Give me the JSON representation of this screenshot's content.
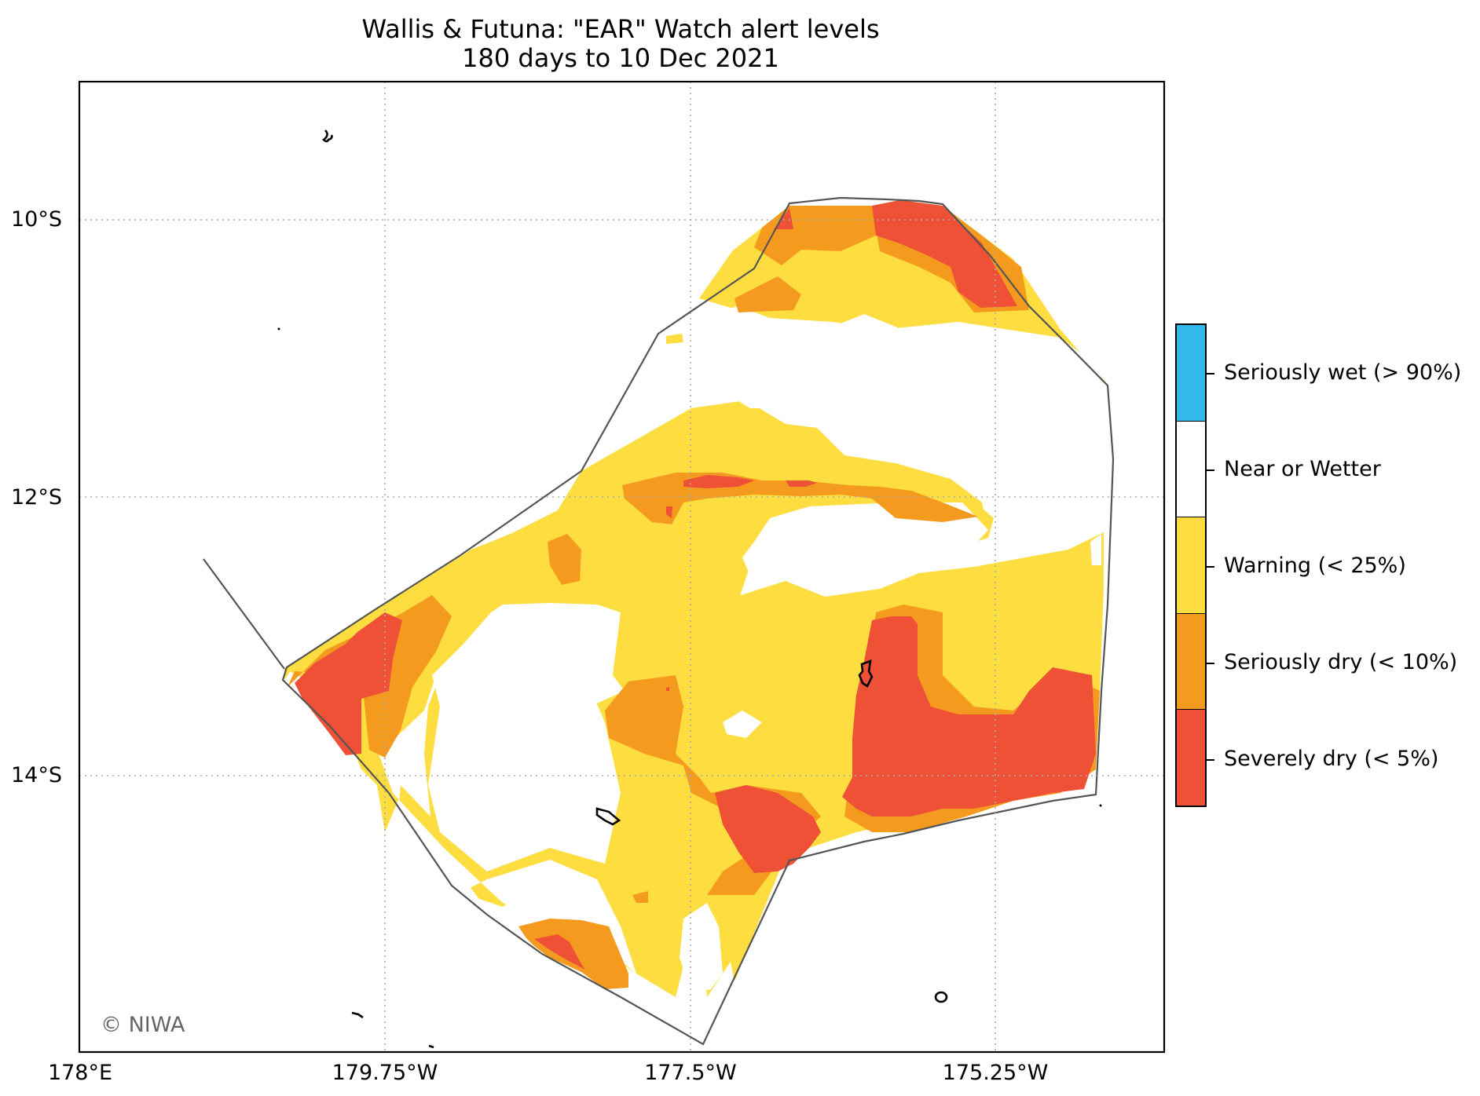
{
  "title_line1": "Wallis & Futuna: \"EAR\" Watch alert levels",
  "title_line2": "180 days to 10 Dec 2021",
  "credit": "© NIWA",
  "lat_labels": [
    "10°S",
    "12°S",
    "14°S"
  ],
  "lon_labels": [
    "178°E",
    "179.75°W",
    "177.5°W",
    "175.25°W"
  ],
  "legend": [
    {
      "label": "Seriously wet (> 90%)",
      "color": "#33b8ec"
    },
    {
      "label": "Near or Wetter",
      "color": "#ffffff"
    },
    {
      "label": "Warning (< 25%)",
      "color": "#fddd3f"
    },
    {
      "label": "Seriously dry (< 10%)",
      "color": "#f49a1f"
    },
    {
      "label": "Severely dry (< 5%)",
      "color": "#ef5136"
    }
  ],
  "colors": {
    "warning": "#fddd3f",
    "seriously_dry": "#f49a1f",
    "severely_dry": "#ef5136",
    "eez_boundary": "#555555",
    "gridline": "#aaaaaa"
  }
}
